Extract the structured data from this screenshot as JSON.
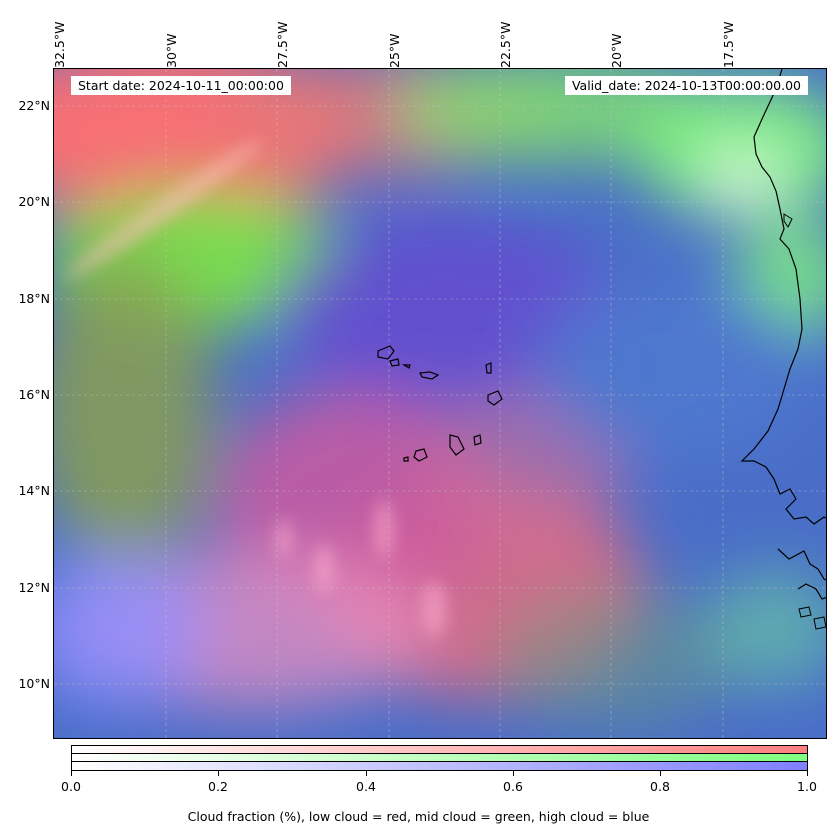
{
  "map": {
    "start_date_label": "Start date: 2024-10-11_00:00:00",
    "valid_date_label": "Valid_date: 2024-10-13T00:00:00.00",
    "lon_ticks": [
      "32.5°W",
      "30°W",
      "27.5°W",
      "25°W",
      "22.5°W",
      "20°W",
      "17.5°W"
    ],
    "lat_ticks": [
      "22°N",
      "20°N",
      "18°N",
      "16°N",
      "14°N",
      "12°N",
      "10°N"
    ],
    "extent": {
      "lon_min": -32.5,
      "lon_max": -15.0,
      "lat_min": 8.8,
      "lat_max": 22.8
    },
    "gridlines": true,
    "colors": {
      "low_cloud": "#ff7f7f",
      "mid_cloud": "#7fff7f",
      "high_cloud": "#7f7fff",
      "base": "#4a6ec8",
      "coastline": "#000000"
    }
  },
  "colorbar": {
    "ticks": [
      "0.0",
      "0.2",
      "0.4",
      "0.6",
      "0.8",
      "1.0"
    ],
    "label": "Cloud fraction (%), low cloud = red, mid cloud = green, high cloud = blue"
  }
}
